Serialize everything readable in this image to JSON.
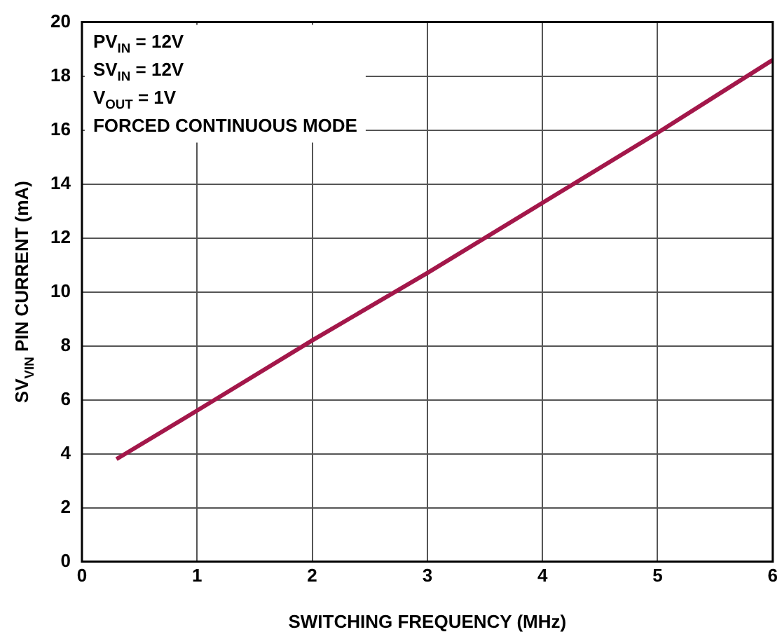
{
  "chart_data": {
    "type": "line",
    "xlabel": "SWITCHING FREQUENCY (MHz)",
    "ylabel": "SV$_{VIN}$ PIN CURRENT (mA)",
    "x": [
      0.3,
      1,
      2,
      3,
      4,
      5,
      6
    ],
    "series": [
      {
        "color": "#a3174a",
        "values": [
          3.8,
          5.6,
          8.2,
          10.7,
          13.3,
          15.9,
          18.6
        ]
      }
    ],
    "xlim": [
      0,
      6
    ],
    "xticks": [
      0,
      1,
      2,
      3,
      4,
      5,
      6
    ],
    "ylim": [
      0,
      20
    ],
    "yticks": [
      0,
      2,
      4,
      6,
      8,
      10,
      12,
      14,
      16,
      18,
      20
    ],
    "grid": true,
    "marker": "none",
    "line_style": "solid",
    "legend": false,
    "annotations": [
      "PV$_{IN}$ = 12V",
      "SV$_{IN}$ = 12V",
      "V$_{OUT}$ = 1V",
      "FORCED CONTINUOUS MODE"
    ]
  }
}
